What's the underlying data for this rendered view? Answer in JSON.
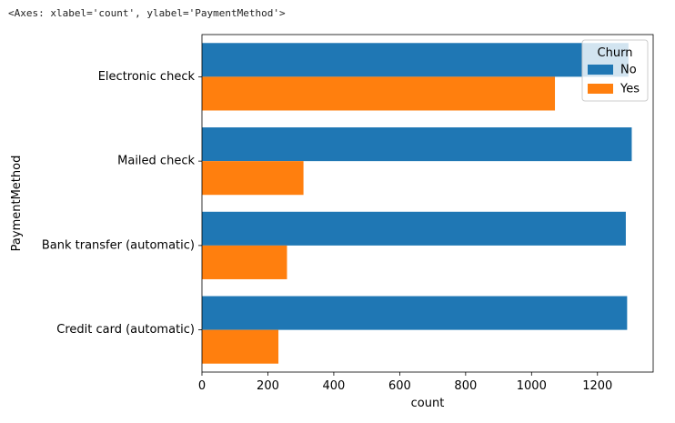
{
  "output_repr": "<Axes: xlabel='count', ylabel='PaymentMethod'>",
  "chart_data": {
    "type": "bar",
    "orientation": "horizontal",
    "categories": [
      "Electronic check",
      "Mailed check",
      "Bank transfer (automatic)",
      "Credit card (automatic)"
    ],
    "series": [
      {
        "name": "No",
        "color": "#1f77b4",
        "values": [
          1294,
          1304,
          1286,
          1290
        ]
      },
      {
        "name": "Yes",
        "color": "#ff7f0e",
        "values": [
          1071,
          308,
          258,
          232
        ]
      }
    ],
    "xlabel": "count",
    "ylabel": "PaymentMethod",
    "xlim": [
      0,
      1369
    ],
    "xticks": [
      0,
      200,
      400,
      600,
      800,
      1000,
      1200
    ],
    "legend": {
      "title": "Churn",
      "position": "top-right"
    },
    "grid": false
  }
}
